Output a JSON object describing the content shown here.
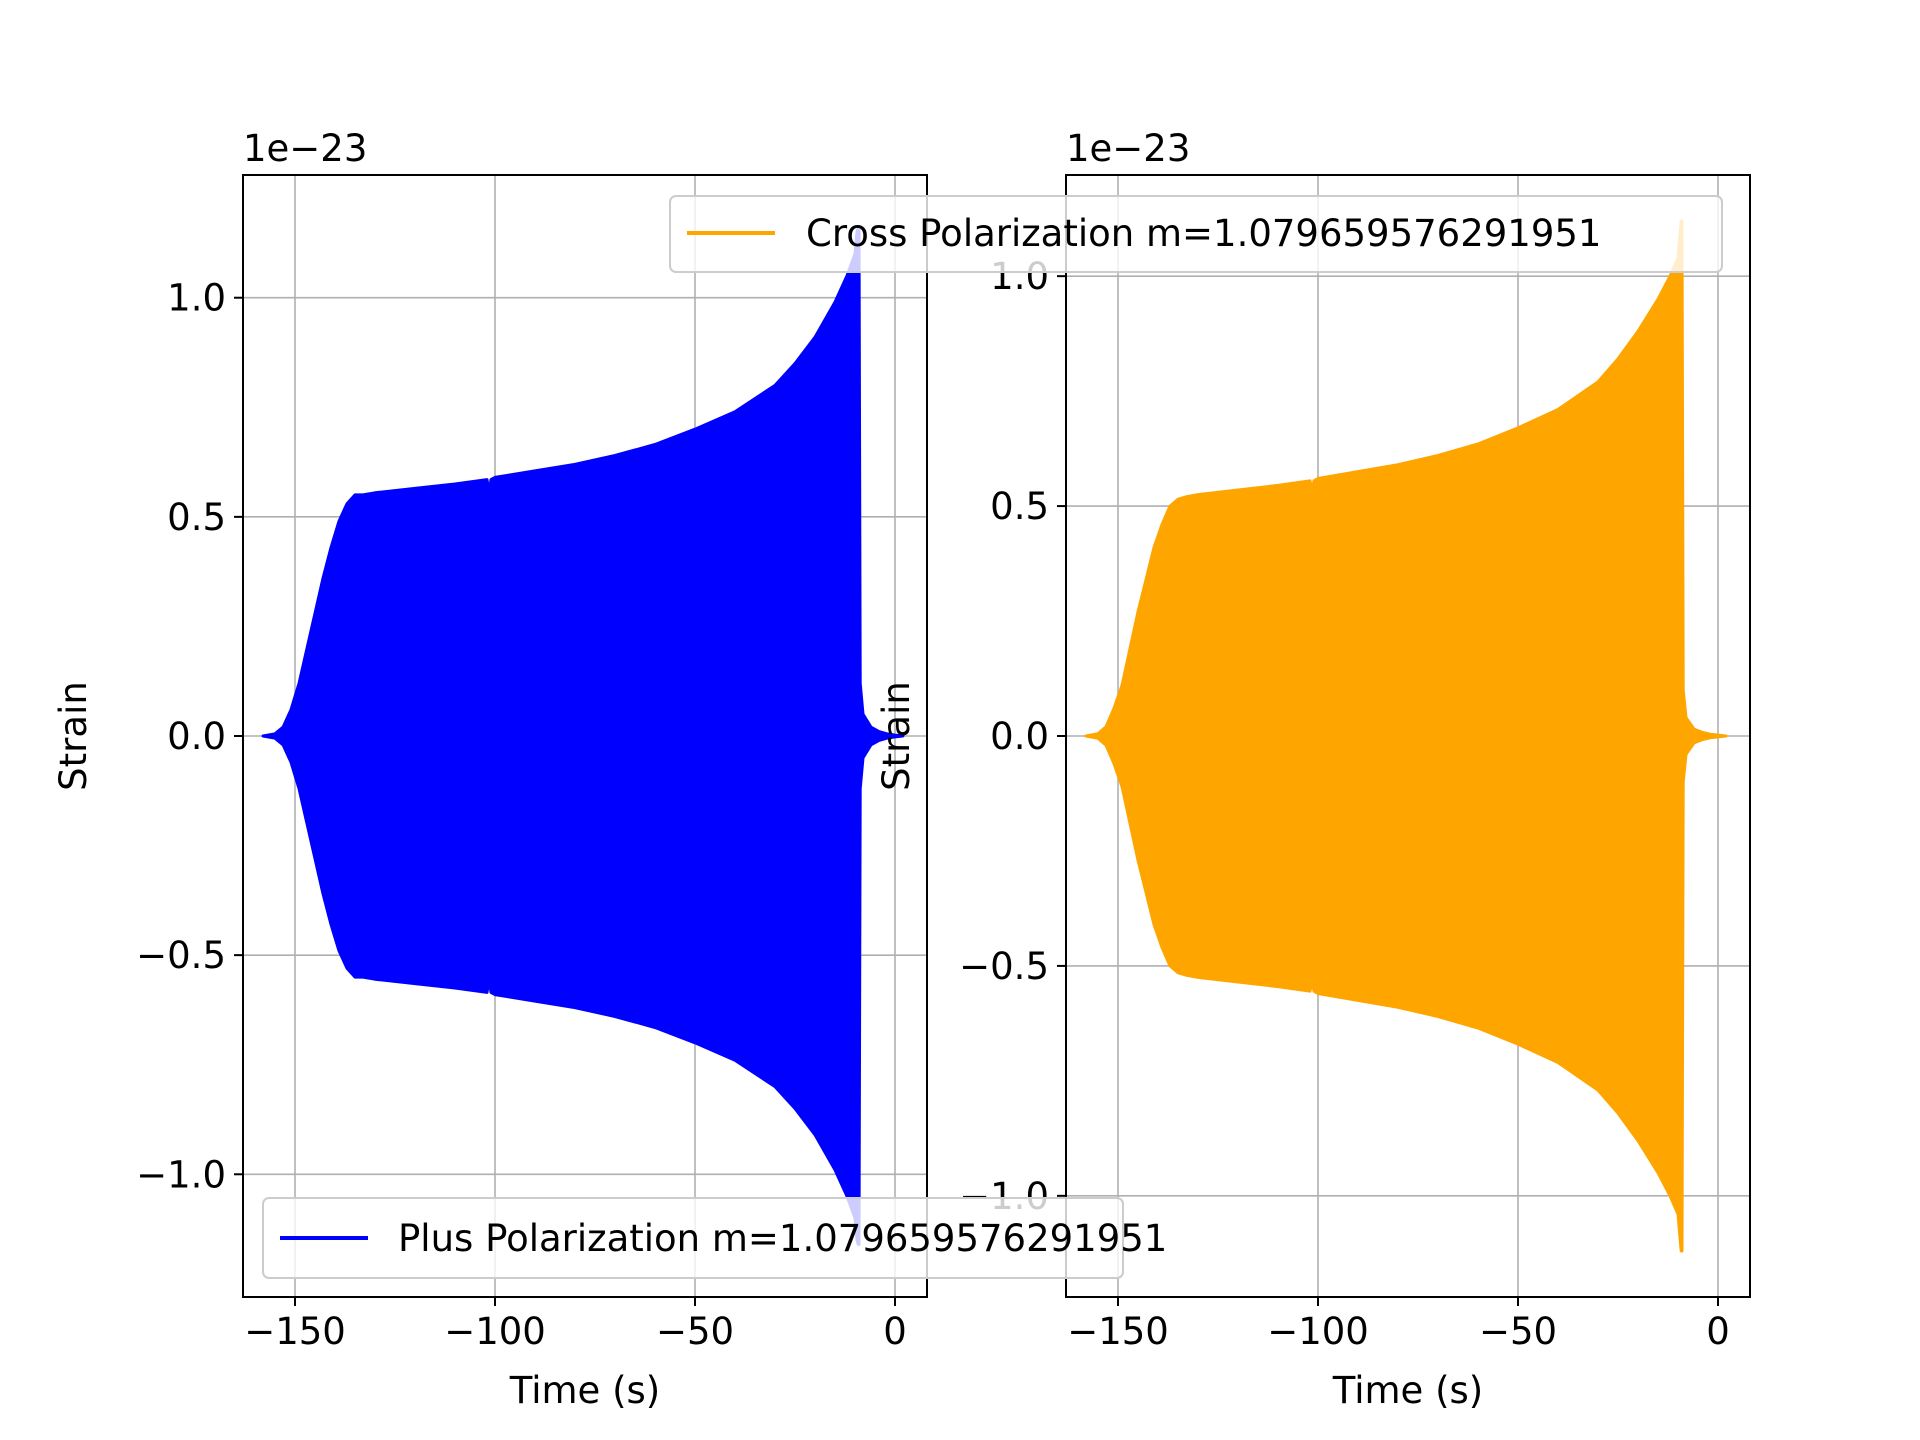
{
  "chart_data": [
    {
      "type": "area",
      "title": "",
      "offset_label": "1e−23",
      "xlabel": "Time (s)",
      "ylabel": "Strain",
      "xlim": [
        -163,
        8
      ],
      "ylim": [
        -1.28,
        1.28
      ],
      "xticks": [
        -150,
        -100,
        -50,
        0
      ],
      "xtick_labels": [
        "−150",
        "−100",
        "−50",
        "0"
      ],
      "yticks": [
        -1.0,
        -0.5,
        0.0,
        0.5,
        1.0
      ],
      "ytick_labels": [
        "−1.0",
        "−0.5",
        "0.0",
        "0.5",
        "1.0"
      ],
      "grid": true,
      "color": "#0000ff",
      "legend": {
        "label": "Plus Polarization m=1.079659576291951",
        "location": "lower-left"
      },
      "series": [
        {
          "name": "Plus Polarization m=1.079659576291951",
          "time": [
            -158,
            -155,
            -153,
            -151,
            -149,
            -147,
            -145,
            -143,
            -141,
            -139,
            -137,
            -135,
            -133,
            -130,
            -120,
            -110,
            -102,
            -101.5,
            -101,
            -100,
            -90,
            -80,
            -70,
            -60,
            -50,
            -40,
            -30,
            -25,
            -20,
            -15,
            -12,
            -10,
            -9.5,
            -9.2,
            -9.0,
            -8.7,
            -8,
            -6,
            -4,
            -2,
            0,
            2
          ],
          "envelope": [
            0.0,
            0.005,
            0.02,
            0.06,
            0.12,
            0.2,
            0.28,
            0.36,
            0.43,
            0.49,
            0.53,
            0.55,
            0.55,
            0.555,
            0.565,
            0.575,
            0.585,
            0.555,
            0.585,
            0.59,
            0.605,
            0.62,
            0.64,
            0.665,
            0.7,
            0.74,
            0.8,
            0.85,
            0.91,
            0.99,
            1.05,
            1.1,
            1.15,
            1.16,
            1.16,
            0.12,
            0.05,
            0.02,
            0.01,
            0.005,
            0.002,
            0.0
          ]
        }
      ]
    },
    {
      "type": "area",
      "title": "",
      "offset_label": "1e−23",
      "xlabel": "Time (s)",
      "ylabel": "Strain",
      "xlim": [
        -163,
        8
      ],
      "ylim": [
        -1.22,
        1.22
      ],
      "xticks": [
        -150,
        -100,
        -50,
        0
      ],
      "xtick_labels": [
        "−150",
        "−100",
        "−50",
        "0"
      ],
      "yticks": [
        -1.0,
        -0.5,
        0.0,
        0.5,
        1.0
      ],
      "ytick_labels": [
        "−1.0",
        "−0.5",
        "0.0",
        "0.5",
        "1.0"
      ],
      "grid": true,
      "color": "#ffa500",
      "legend": {
        "label": "Cross Polarization m=1.079659576291951",
        "location": "upper-right"
      },
      "series": [
        {
          "name": "Cross Polarization m=1.079659576291951",
          "time": [
            -158,
            -155,
            -153,
            -151,
            -149,
            -147,
            -145,
            -143,
            -141,
            -139,
            -137,
            -135,
            -133,
            -130,
            -120,
            -110,
            -102,
            -101.5,
            -101,
            -100,
            -90,
            -80,
            -70,
            -60,
            -50,
            -40,
            -30,
            -25,
            -20,
            -15,
            -12,
            -10,
            -9.5,
            -9.2,
            -9.0,
            -8.7,
            -8,
            -6,
            -4,
            -2,
            0,
            2
          ],
          "envelope": [
            0.0,
            0.005,
            0.02,
            0.06,
            0.11,
            0.19,
            0.27,
            0.34,
            0.41,
            0.46,
            0.5,
            0.515,
            0.52,
            0.525,
            0.535,
            0.545,
            0.555,
            0.53,
            0.555,
            0.56,
            0.575,
            0.59,
            0.61,
            0.635,
            0.67,
            0.71,
            0.77,
            0.82,
            0.88,
            0.95,
            1.0,
            1.04,
            1.09,
            1.12,
            1.12,
            0.1,
            0.04,
            0.015,
            0.008,
            0.004,
            0.002,
            0.0
          ]
        }
      ]
    }
  ]
}
